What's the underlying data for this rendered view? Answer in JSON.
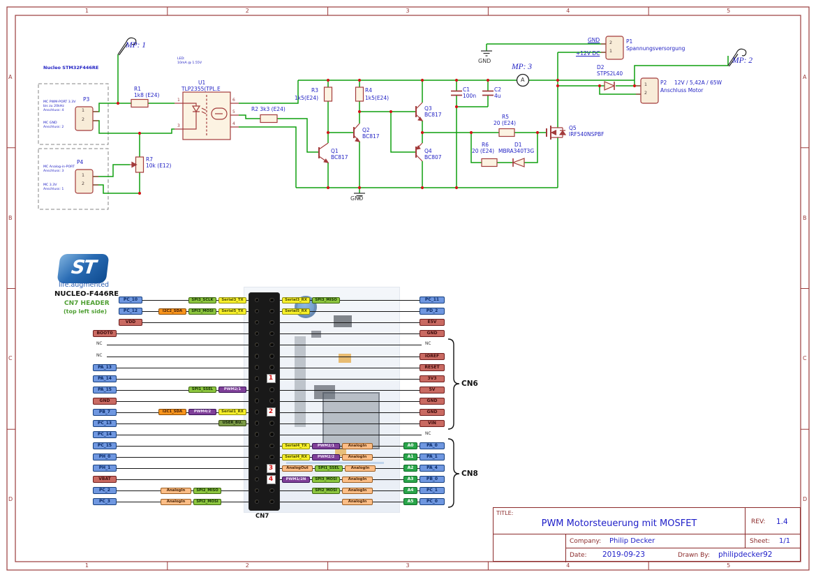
{
  "frame": {
    "columns": [
      "1",
      "2",
      "3",
      "4",
      "5"
    ],
    "rows": [
      "A",
      "B",
      "C",
      "D"
    ],
    "color": "#9a3b3b"
  },
  "title_block": {
    "title_label": "TITLE:",
    "title": "PWM Motorsteuerung mit MOSFET",
    "rev_label": "REV:",
    "rev": "1.4",
    "company_label": "Company:",
    "company": "Philip Decker",
    "sheet_label": "Sheet:",
    "sheet": "1/1",
    "date_label": "Date:",
    "date": "2019-09-23",
    "drawn_label": "Drawn By:",
    "drawn_by": "philipdecker92"
  },
  "schematic": {
    "wire_color": "#0f9f0f",
    "symbol_color": "#a33b3b",
    "label_color": "#2222c4",
    "probes": {
      "mp1": "MP: 1",
      "mp2": "MP: 2",
      "mp3": "MP: 3"
    },
    "ammeter": "A",
    "power": {
      "gnd_top": "GND",
      "gnd_bottom": "GND",
      "gnd_label": "GND",
      "v12_label": "+12V DC"
    },
    "nucleo_box": {
      "title": "Nucleo STM32F446RE",
      "p3": {
        "ref": "P3",
        "pins": [
          "1",
          "2"
        ],
        "note1": [
          "MC PWM-PORT 3.3V",
          "bis zu 20kHz",
          "Anschluss: 4"
        ],
        "note2": [
          "MC GND",
          "Anschluss: 2"
        ]
      },
      "p4": {
        "ref": "P4",
        "pins": [
          "1",
          "2"
        ],
        "note1": [
          "MC Analog-in-PORT",
          "Anschluss: 3"
        ],
        "note2": [
          "MC 3.3V",
          "Anschluss: 1"
        ]
      }
    },
    "components": {
      "r1": {
        "ref": "R1",
        "value": "1k8 (E24)"
      },
      "r2": {
        "ref": "R2 3k3 (E24)"
      },
      "r3": {
        "ref": "R3",
        "value": "1k5(E24)"
      },
      "r4": {
        "ref": "R4",
        "value": "1k5(E24)"
      },
      "r5": {
        "ref": "R5",
        "value": "20 (E24)"
      },
      "r6": {
        "ref": "R6",
        "value": "20 (E24)"
      },
      "r7": {
        "ref": "R7",
        "value": "10k (E12)"
      },
      "c1": {
        "ref": "C1",
        "value": "100n"
      },
      "c2": {
        "ref": "C2",
        "value": "4u"
      },
      "d1": {
        "ref": "D1",
        "value": "MBRA340T3G"
      },
      "d2": {
        "ref": "D2",
        "value": "STPS2L40"
      },
      "q1": {
        "ref": "Q1",
        "value": "BC817"
      },
      "q2": {
        "ref": "Q2",
        "value": "BC817"
      },
      "q3": {
        "ref": "Q3",
        "value": "BC817"
      },
      "q4": {
        "ref": "Q4",
        "value": "BC807"
      },
      "q5": {
        "ref": "Q5",
        "value": "IRF540NSPBF"
      },
      "u1": {
        "ref": "U1",
        "value": "TLP2355(TPL.E",
        "pins_left": [
          "1",
          "3"
        ],
        "pins_right": [
          "6",
          "5",
          "4"
        ],
        "note": [
          "LED:",
          "10mA @ 1.55V"
        ]
      }
    },
    "connectors": {
      "p1": {
        "ref": "P1",
        "desc": "Spannungsversorgung",
        "pins": [
          "2",
          "1"
        ]
      },
      "p2": {
        "ref": "P2",
        "desc1": "12V / 5,42A / 65W",
        "desc2": "Anschluss Motor",
        "pins": [
          "1",
          "2"
        ]
      }
    }
  },
  "pinout": {
    "logo_text": "ST",
    "logo_tagline": "life.augmented",
    "board": "NUCLEO-F446RE",
    "header_name": "CN7 HEADER",
    "header_side": "(top left side)",
    "connector_label": "CN7",
    "bracket_cn6": "CN6",
    "bracket_cn8": "CN8",
    "palette": {
      "gpio": "#6f97e0",
      "power": "#c96a62",
      "spi": "#8dc63f",
      "serial": "#f7ef2a",
      "i2c": "#f7941d",
      "pwm": "#7f3f98",
      "analog": "#fbbd86",
      "arduino": "#2aa54a",
      "user": "#7a9a45"
    },
    "rows": [
      {
        "left": {
          "t": "PC_10",
          "c": "gpio"
        },
        "lfns": [
          {
            "t": "SPI3_SCLK",
            "c": "spi"
          },
          {
            "t": "Serial3_TX",
            "c": "serial"
          }
        ],
        "rfns": [
          {
            "t": "Serial3_RX",
            "c": "serial"
          },
          {
            "t": "SPI3_MISO",
            "c": "spi"
          }
        ],
        "a": null,
        "right": {
          "t": "PC_11",
          "c": "gpio"
        },
        "marker": null
      },
      {
        "left": {
          "t": "PC_12",
          "c": "gpio"
        },
        "lfns": [
          {
            "t": "I2C2_SDA",
            "c": "i2c"
          },
          {
            "t": "SPI3_MOSI",
            "c": "spi"
          },
          {
            "t": "Serial5_TX",
            "c": "serial"
          }
        ],
        "rfns": [
          {
            "t": "Serial5_RX",
            "c": "serial"
          }
        ],
        "a": null,
        "right": {
          "t": "PD_2",
          "c": "gpio"
        },
        "marker": null
      },
      {
        "left": {
          "t": "VDD",
          "c": "power"
        },
        "lfns": [],
        "rfns": [],
        "a": null,
        "right": {
          "t": "E5V",
          "c": "power"
        },
        "marker": null
      },
      {
        "left": {
          "t": "BOOT0",
          "c": "power"
        },
        "lfns": [],
        "rfns": [],
        "a": null,
        "right": {
          "t": "GND",
          "c": "power"
        },
        "marker": null
      },
      {
        "left": {
          "t": "NC",
          "c": "nc"
        },
        "lfns": [],
        "rfns": [],
        "a": null,
        "right": {
          "t": "NC",
          "c": "nc"
        },
        "marker": null
      },
      {
        "left": {
          "t": "NC",
          "c": "nc"
        },
        "lfns": [],
        "rfns": [],
        "a": null,
        "right": {
          "t": "IOREF",
          "c": "power"
        },
        "marker": null
      },
      {
        "left": {
          "t": "PA_13",
          "c": "gpio"
        },
        "lfns": [],
        "rfns": [],
        "a": null,
        "right": {
          "t": "RESET",
          "c": "power"
        },
        "marker": null
      },
      {
        "left": {
          "t": "PA_14",
          "c": "gpio"
        },
        "lfns": [],
        "rfns": [],
        "a": null,
        "right": {
          "t": "3V3",
          "c": "power"
        },
        "marker": "1"
      },
      {
        "left": {
          "t": "PA_15",
          "c": "gpio"
        },
        "lfns": [
          {
            "t": "SPI1_SSEL",
            "c": "spi"
          },
          {
            "t": "PWM2/1",
            "c": "pwm"
          }
        ],
        "rfns": [],
        "a": null,
        "right": {
          "t": "5V",
          "c": "power"
        },
        "marker": null
      },
      {
        "left": {
          "t": "GND",
          "c": "power"
        },
        "lfns": [],
        "rfns": [],
        "a": null,
        "right": {
          "t": "GND",
          "c": "power"
        },
        "marker": null
      },
      {
        "left": {
          "t": "PB_7",
          "c": "gpio"
        },
        "lfns": [
          {
            "t": "I2C1_SDA",
            "c": "i2c"
          },
          {
            "t": "PWM4/2",
            "c": "pwm"
          },
          {
            "t": "Serial1_RX",
            "c": "serial"
          }
        ],
        "rfns": [],
        "a": null,
        "right": {
          "t": "GND",
          "c": "power"
        },
        "marker": "2"
      },
      {
        "left": {
          "t": "PC_13",
          "c": "gpio"
        },
        "lfns": [
          {
            "t": "USER_BU.",
            "c": "user"
          }
        ],
        "rfns": [],
        "a": null,
        "right": {
          "t": "VIN",
          "c": "power"
        },
        "marker": null
      },
      {
        "left": {
          "t": "PC_14",
          "c": "gpio"
        },
        "lfns": [],
        "rfns": [],
        "a": null,
        "right": {
          "t": "NC",
          "c": "nc"
        },
        "marker": null
      },
      {
        "left": {
          "t": "PC_15",
          "c": "gpio"
        },
        "lfns": [],
        "rfns": [
          {
            "t": "Serial4_TX",
            "c": "serial"
          },
          {
            "t": "PWM2/1",
            "c": "pwm"
          },
          {
            "t": "AnalogIn",
            "c": "analog"
          }
        ],
        "a": "A0",
        "right": {
          "t": "PA_0",
          "c": "gpio"
        },
        "marker": null
      },
      {
        "left": {
          "t": "PH_0",
          "c": "gpio"
        },
        "lfns": [],
        "rfns": [
          {
            "t": "Serial4_RX",
            "c": "serial"
          },
          {
            "t": "PWM2/2",
            "c": "pwm"
          },
          {
            "t": "AnalogIn",
            "c": "analog"
          }
        ],
        "a": "A1",
        "right": {
          "t": "PA_1",
          "c": "gpio"
        },
        "marker": null
      },
      {
        "left": {
          "t": "PH_1",
          "c": "gpio"
        },
        "lfns": [],
        "rfns": [
          {
            "t": "AnalogOut",
            "c": "analog"
          },
          {
            "t": "SPI1_SSEL",
            "c": "spi"
          },
          {
            "t": "AnalogIn",
            "c": "analog"
          }
        ],
        "a": "A2",
        "right": {
          "t": "PA_4",
          "c": "gpio"
        },
        "marker": "3"
      },
      {
        "left": {
          "t": "VBAT",
          "c": "power"
        },
        "lfns": [],
        "rfns": [
          {
            "t": "PWM1/2N",
            "c": "pwm"
          },
          {
            "t": "SPI3_MOSI",
            "c": "spi"
          },
          {
            "t": "AnalogIn",
            "c": "analog"
          }
        ],
        "a": "A3",
        "right": {
          "t": "PB_0",
          "c": "gpio"
        },
        "marker": "4"
      },
      {
        "left": {
          "t": "PC_2",
          "c": "gpio"
        },
        "lfns": [
          {
            "t": "AnalogIn",
            "c": "analog"
          },
          {
            "t": "SPI2_MISO",
            "c": "spi"
          }
        ],
        "rfns": [
          {
            "t": "SPI2_MOSI",
            "c": "spi"
          },
          {
            "t": "AnalogIn",
            "c": "analog"
          }
        ],
        "a": "A4",
        "right": {
          "t": "PC_1",
          "c": "gpio"
        },
        "marker": null
      },
      {
        "left": {
          "t": "PC_3",
          "c": "gpio"
        },
        "lfns": [
          {
            "t": "AnalogIn",
            "c": "analog"
          },
          {
            "t": "SPI2_MOSI",
            "c": "spi"
          }
        ],
        "rfns": [
          {
            "t": "AnalogIn",
            "c": "analog"
          }
        ],
        "a": "A5",
        "right": {
          "t": "PC_0",
          "c": "gpio"
        },
        "marker": null
      }
    ]
  }
}
